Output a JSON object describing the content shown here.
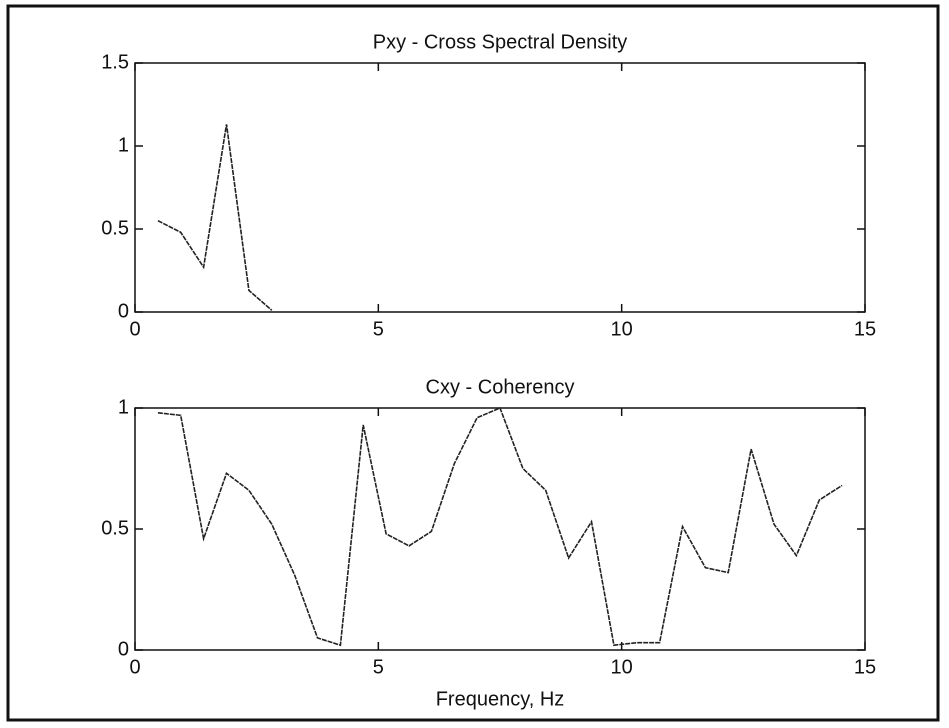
{
  "chart_data": [
    {
      "type": "line",
      "title": "Pxy - Cross Spectral Density",
      "x": [
        0.47,
        0.94,
        1.41,
        1.88,
        2.34,
        2.81
      ],
      "values": [
        0.55,
        0.48,
        0.27,
        1.13,
        0.13,
        0.01
      ],
      "color": "#222222",
      "xlim": [
        0,
        15
      ],
      "xticks": [
        0,
        5,
        10,
        15
      ],
      "ylim": [
        0,
        1.5
      ],
      "yticks": [
        0,
        0.5,
        1,
        1.5
      ]
    },
    {
      "type": "line",
      "title": "Cxy - Coherency",
      "xlabel": "Frequency, Hz",
      "x": [
        0.47,
        0.94,
        1.41,
        1.88,
        2.34,
        2.81,
        3.28,
        3.75,
        4.22,
        4.69,
        5.16,
        5.63,
        6.09,
        6.56,
        7.03,
        7.5,
        7.97,
        8.44,
        8.91,
        9.38,
        9.84,
        10.31,
        10.78,
        11.25,
        11.72,
        12.19,
        12.66,
        13.13,
        13.59,
        14.06,
        14.53
      ],
      "values": [
        0.98,
        0.97,
        0.46,
        0.73,
        0.66,
        0.52,
        0.31,
        0.05,
        0.02,
        0.93,
        0.48,
        0.43,
        0.49,
        0.77,
        0.96,
        1.0,
        0.75,
        0.66,
        0.38,
        0.53,
        0.02,
        0.03,
        0.03,
        0.51,
        0.34,
        0.32,
        0.83,
        0.52,
        0.39,
        0.62,
        0.68
      ],
      "color": "#222222",
      "xlim": [
        0,
        15
      ],
      "xticks": [
        0,
        5,
        10,
        15
      ],
      "ylim": [
        0,
        1
      ],
      "yticks": [
        0,
        0.5,
        1
      ]
    }
  ]
}
